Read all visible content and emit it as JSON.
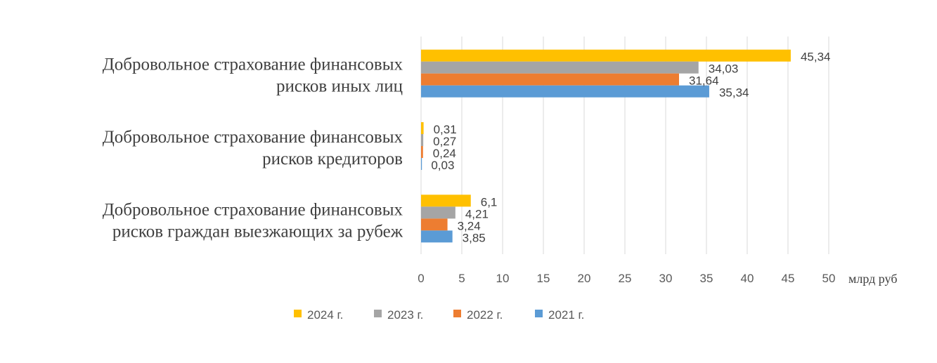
{
  "chart_data": {
    "type": "bar",
    "orientation": "horizontal",
    "categories": [
      [
        "Добровольное страхование финансовых",
        "рисков иных лиц"
      ],
      [
        "Добровольное страхование финансовых",
        "рисков кредиторов"
      ],
      [
        "Добровольное страхование финансовых",
        "рисков  граждан выезжающих за рубеж"
      ]
    ],
    "series": [
      {
        "name": "2024 г.",
        "color": "#ffc000",
        "values": [
          45.34,
          0.31,
          6.1
        ],
        "labels": [
          "45,34",
          "0,31",
          "6,1"
        ]
      },
      {
        "name": "2023 г.",
        "color": "#a5a5a5",
        "values": [
          34.03,
          0.27,
          4.21
        ],
        "labels": [
          "34,03",
          "0,27",
          "4,21"
        ]
      },
      {
        "name": "2022 г.",
        "color": "#ed7d31",
        "values": [
          31.64,
          0.24,
          3.24
        ],
        "labels": [
          "31,64",
          "0,24",
          "3,24"
        ]
      },
      {
        "name": "2021 г.",
        "color": "#5b9bd5",
        "values": [
          35.34,
          0.03,
          3.85
        ],
        "labels": [
          "35,34",
          "0,03",
          "3,85"
        ]
      }
    ],
    "xlim": [
      0,
      50
    ],
    "xticks": [
      0,
      5,
      10,
      15,
      20,
      25,
      30,
      35,
      40,
      45,
      50
    ],
    "xlabel": "млрд руб",
    "grid": "vertical",
    "legend": "bottom"
  }
}
